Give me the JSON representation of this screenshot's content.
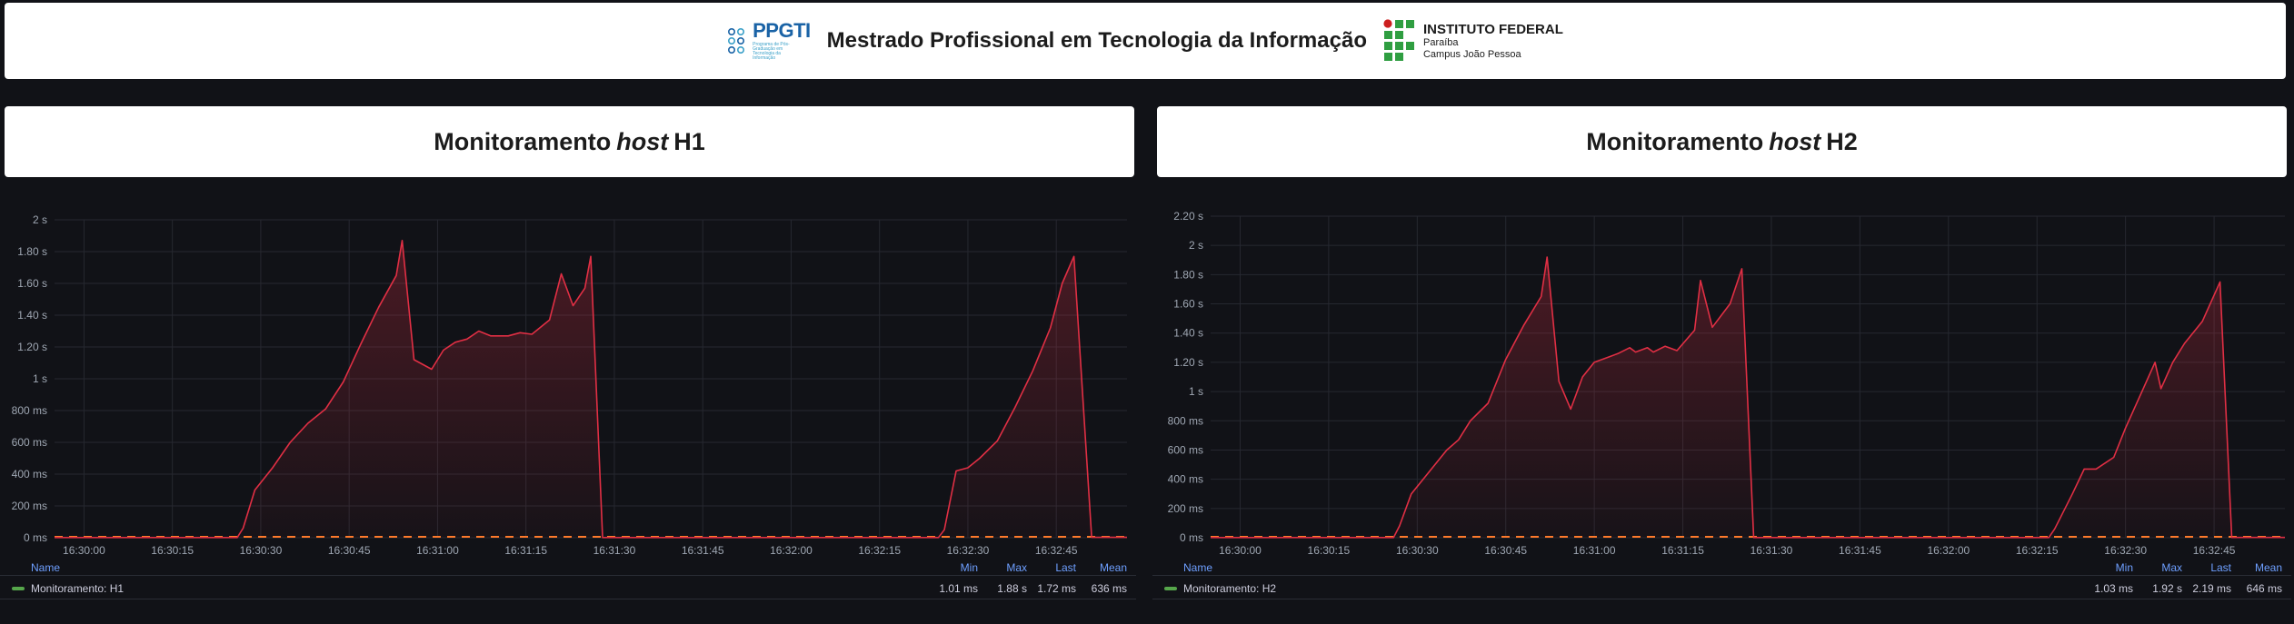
{
  "banner": {
    "ppgti_logo_text": "PPGTI",
    "ppgti_logo_subtext": "Programa de Pós-Graduação em Tecnologia da Informação",
    "title": "Mestrado Profissional em Tecnologia da Informação",
    "institute_name": "INSTITUTO FEDERAL",
    "institute_state": "Paraíba",
    "institute_campus": "Campus João Pessoa"
  },
  "panels": [
    {
      "title_prefix": "Monitoramento",
      "title_italic": "host",
      "title_suffix": "H1",
      "legend": {
        "headers": {
          "name": "Name",
          "min": "Min",
          "max": "Max",
          "last": "Last",
          "mean": "Mean"
        },
        "series_name": "Monitoramento: H1",
        "min": "1.01 ms",
        "max": "1.88 s",
        "last": "1.72 ms",
        "mean": "636 ms"
      }
    },
    {
      "title_prefix": "Monitoramento",
      "title_italic": "host",
      "title_suffix": "H2",
      "legend": {
        "headers": {
          "name": "Name",
          "min": "Min",
          "max": "Max",
          "last": "Last",
          "mean": "Mean"
        },
        "series_name": "Monitoramento: H2",
        "min": "1.03 ms",
        "max": "1.92 s",
        "last": "2.19 ms",
        "mean": "646 ms"
      }
    }
  ],
  "colors": {
    "background": "#111217",
    "series_line": "#e02f44",
    "threshold_line": "#ff7c2a",
    "legend_swatch": "#56a64b",
    "legend_header": "#6e9fff"
  },
  "chart_data": [
    {
      "type": "area",
      "title": "Monitoramento host H1",
      "x_start": "16:29:55",
      "x_end": "16:32:57",
      "xticks": [
        "16:30:00",
        "16:30:15",
        "16:30:30",
        "16:30:45",
        "16:31:00",
        "16:31:15",
        "16:31:30",
        "16:31:45",
        "16:32:00",
        "16:32:15",
        "16:32:30",
        "16:32:45"
      ],
      "ylim": [
        0,
        2.0
      ],
      "yticks": [
        {
          "v": 0,
          "label": "0 ms"
        },
        {
          "v": 0.2,
          "label": "200 ms"
        },
        {
          "v": 0.4,
          "label": "400 ms"
        },
        {
          "v": 0.6,
          "label": "600 ms"
        },
        {
          "v": 0.8,
          "label": "800 ms"
        },
        {
          "v": 1.0,
          "label": "1 s"
        },
        {
          "v": 1.2,
          "label": "1.20 s"
        },
        {
          "v": 1.4,
          "label": "1.40 s"
        },
        {
          "v": 1.6,
          "label": "1.60 s"
        },
        {
          "v": 1.8,
          "label": "1.80 s"
        },
        {
          "v": 2.0,
          "label": "2 s"
        }
      ],
      "grid": true,
      "series": [
        {
          "name": "Monitoramento: H1",
          "points": [
            [
              "16:29:55",
              0.001
            ],
            [
              "16:30:26",
              0.001
            ],
            [
              "16:30:27",
              0.06
            ],
            [
              "16:30:29",
              0.3
            ],
            [
              "16:30:32",
              0.44
            ],
            [
              "16:30:35",
              0.6
            ],
            [
              "16:30:38",
              0.72
            ],
            [
              "16:30:41",
              0.81
            ],
            [
              "16:30:44",
              0.98
            ],
            [
              "16:30:47",
              1.22
            ],
            [
              "16:30:50",
              1.45
            ],
            [
              "16:30:53",
              1.65
            ],
            [
              "16:30:54",
              1.87
            ],
            [
              "16:30:56",
              1.12
            ],
            [
              "16:30:59",
              1.06
            ],
            [
              "16:31:01",
              1.18
            ],
            [
              "16:31:03",
              1.23
            ],
            [
              "16:31:05",
              1.25
            ],
            [
              "16:31:07",
              1.3
            ],
            [
              "16:31:09",
              1.27
            ],
            [
              "16:31:12",
              1.27
            ],
            [
              "16:31:14",
              1.29
            ],
            [
              "16:31:16",
              1.28
            ],
            [
              "16:31:19",
              1.37
            ],
            [
              "16:31:21",
              1.66
            ],
            [
              "16:31:23",
              1.46
            ],
            [
              "16:31:25",
              1.57
            ],
            [
              "16:31:26",
              1.77
            ],
            [
              "16:31:28",
              0.001
            ],
            [
              "16:32:25",
              0.001
            ],
            [
              "16:32:26",
              0.05
            ],
            [
              "16:32:28",
              0.42
            ],
            [
              "16:32:30",
              0.44
            ],
            [
              "16:32:32",
              0.5
            ],
            [
              "16:32:35",
              0.61
            ],
            [
              "16:32:38",
              0.82
            ],
            [
              "16:32:41",
              1.05
            ],
            [
              "16:32:44",
              1.32
            ],
            [
              "16:32:46",
              1.6
            ],
            [
              "16:32:48",
              1.77
            ],
            [
              "16:32:51",
              0.002
            ],
            [
              "16:32:57",
              0.002
            ]
          ]
        }
      ]
    },
    {
      "type": "area",
      "title": "Monitoramento host H2",
      "x_start": "16:29:55",
      "x_end": "16:32:57",
      "xticks": [
        "16:30:00",
        "16:30:15",
        "16:30:30",
        "16:30:45",
        "16:31:00",
        "16:31:15",
        "16:31:30",
        "16:31:45",
        "16:32:00",
        "16:32:15",
        "16:32:30",
        "16:32:45"
      ],
      "ylim": [
        0,
        2.2
      ],
      "yticks": [
        {
          "v": 0,
          "label": "0 ms"
        },
        {
          "v": 0.2,
          "label": "200 ms"
        },
        {
          "v": 0.4,
          "label": "400 ms"
        },
        {
          "v": 0.6,
          "label": "600 ms"
        },
        {
          "v": 0.8,
          "label": "800 ms"
        },
        {
          "v": 1.0,
          "label": "1 s"
        },
        {
          "v": 1.2,
          "label": "1.20 s"
        },
        {
          "v": 1.4,
          "label": "1.40 s"
        },
        {
          "v": 1.6,
          "label": "1.60 s"
        },
        {
          "v": 1.8,
          "label": "1.80 s"
        },
        {
          "v": 2.0,
          "label": "2 s"
        },
        {
          "v": 2.2,
          "label": "2.20 s"
        }
      ],
      "grid": true,
      "series": [
        {
          "name": "Monitoramento: H2",
          "points": [
            [
              "16:29:55",
              0.001
            ],
            [
              "16:30:26",
              0.001
            ],
            [
              "16:30:27",
              0.08
            ],
            [
              "16:30:29",
              0.3
            ],
            [
              "16:30:32",
              0.45
            ],
            [
              "16:30:35",
              0.6
            ],
            [
              "16:30:37",
              0.67
            ],
            [
              "16:30:39",
              0.8
            ],
            [
              "16:30:42",
              0.92
            ],
            [
              "16:30:45",
              1.22
            ],
            [
              "16:30:48",
              1.45
            ],
            [
              "16:30:51",
              1.65
            ],
            [
              "16:30:52",
              1.92
            ],
            [
              "16:30:54",
              1.07
            ],
            [
              "16:30:56",
              0.88
            ],
            [
              "16:30:58",
              1.1
            ],
            [
              "16:31:00",
              1.2
            ],
            [
              "16:31:02",
              1.23
            ],
            [
              "16:31:04",
              1.26
            ],
            [
              "16:31:06",
              1.3
            ],
            [
              "16:31:07",
              1.27
            ],
            [
              "16:31:09",
              1.3
            ],
            [
              "16:31:10",
              1.27
            ],
            [
              "16:31:12",
              1.31
            ],
            [
              "16:31:14",
              1.28
            ],
            [
              "16:31:17",
              1.42
            ],
            [
              "16:31:18",
              1.76
            ],
            [
              "16:31:20",
              1.44
            ],
            [
              "16:31:23",
              1.6
            ],
            [
              "16:31:25",
              1.84
            ],
            [
              "16:31:27",
              0.001
            ],
            [
              "16:32:17",
              0.001
            ],
            [
              "16:32:18",
              0.06
            ],
            [
              "16:32:21",
              0.3
            ],
            [
              "16:32:23",
              0.47
            ],
            [
              "16:32:25",
              0.47
            ],
            [
              "16:32:28",
              0.55
            ],
            [
              "16:32:30",
              0.75
            ],
            [
              "16:32:33",
              1.02
            ],
            [
              "16:32:35",
              1.2
            ],
            [
              "16:32:36",
              1.02
            ],
            [
              "16:32:38",
              1.2
            ],
            [
              "16:32:40",
              1.33
            ],
            [
              "16:32:43",
              1.48
            ],
            [
              "16:32:46",
              1.75
            ],
            [
              "16:32:48",
              0.002
            ],
            [
              "16:32:57",
              0.002
            ]
          ]
        }
      ]
    }
  ]
}
